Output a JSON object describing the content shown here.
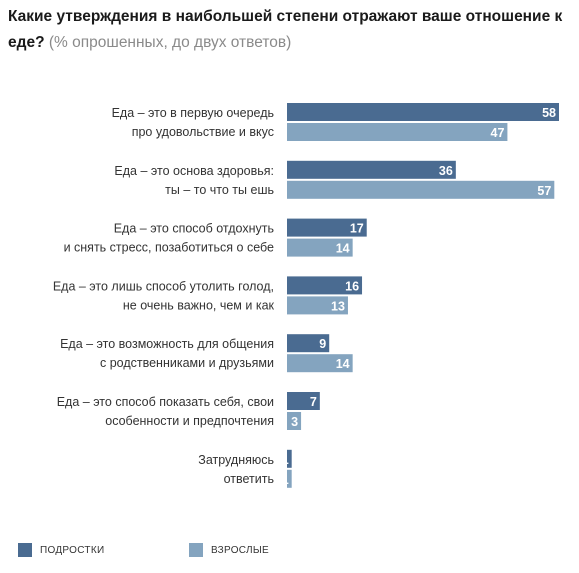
{
  "title": {
    "main": "Какие утверждения в наибольшей степени отражают ваше отношение к еде?",
    "sub": "(% опрошенных, до двух ответов)"
  },
  "colors": {
    "teens": "#4a6b91",
    "adults": "#84a4bf"
  },
  "chart_data": {
    "type": "bar",
    "orientation": "horizontal",
    "categories": [
      [
        "Еда – это в первую очередь",
        "про удовольствие и вкус"
      ],
      [
        "Еда – это основа здоровья:",
        "ты – то что ты ешь"
      ],
      [
        "Еда – это способ отдохнуть",
        "и снять стресс, позаботиться о себе"
      ],
      [
        "Еда – это лишь способ утолить голод,",
        "не очень важно, чем и как"
      ],
      [
        "Еда – это возможность для общения",
        "с родственниками и друзьями"
      ],
      [
        "Еда – это способ показать себя, свои",
        "особенности и предпочтения"
      ],
      [
        "Затрудняюсь",
        "ответить"
      ]
    ],
    "series": [
      {
        "name": "ПОДРОСТКИ",
        "values": [
          58,
          36,
          17,
          16,
          9,
          7,
          1
        ]
      },
      {
        "name": "ВЗРОСЛЫЕ",
        "values": [
          47,
          57,
          14,
          13,
          14,
          3,
          1
        ]
      }
    ],
    "legend": "bottom-left",
    "grid": false
  }
}
